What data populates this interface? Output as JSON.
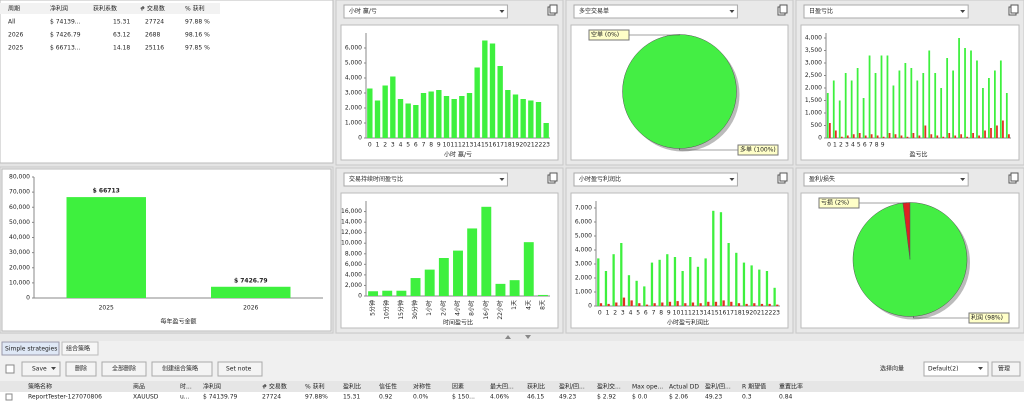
{
  "summary_table": {
    "columns": [
      "周期",
      "净利润",
      "获利系数",
      "# 交易数",
      "% 获利"
    ],
    "rows": [
      [
        "All",
        "$ 74139...",
        "15.31",
        "27724",
        "97.88 %"
      ],
      [
        "2026",
        "$ 7426.79",
        "63.12",
        "2688",
        "98.16 %"
      ],
      [
        "2025",
        "$ 66713...",
        "14.18",
        "25116",
        "97.85 %"
      ]
    ]
  },
  "chart_data": [
    {
      "type": "bar",
      "title": "小时 赢/亏",
      "xlabel": "小时 赢/亏",
      "color": "#3ef03e",
      "categories": [
        "0",
        "1",
        "2",
        "3",
        "4",
        "5",
        "6",
        "7",
        "8",
        "9",
        "10",
        "11",
        "12",
        "13",
        "14",
        "15",
        "16",
        "17",
        "18",
        "19",
        "20",
        "21",
        "22",
        "23"
      ],
      "values": [
        3300,
        2500,
        3500,
        4100,
        2600,
        2300,
        2200,
        3000,
        3100,
        3200,
        2800,
        2600,
        2800,
        3000,
        4700,
        6500,
        6300,
        4800,
        3200,
        2900,
        2600,
        2500,
        2400,
        1000
      ],
      "ylim": [
        0,
        7000
      ],
      "yticks": [
        0,
        {
          "value": 1000,
          "label": "1,000"
        },
        {
          "value": 2000,
          "label": "2,000"
        },
        {
          "value": 3000,
          "label": "3,000"
        },
        {
          "value": 4000,
          "label": "4,000"
        },
        {
          "value": 5000,
          "label": "5,000"
        },
        {
          "value": 6000,
          "label": "6,000"
        }
      ]
    },
    {
      "type": "pie",
      "title": "多空交易单",
      "values": [
        0,
        100
      ],
      "value_labels": [
        "空单 (0%)",
        "多单 (100%)"
      ],
      "colors": [
        "#e03020",
        "#44ee44"
      ]
    },
    {
      "type": "bar",
      "title": "日盈亏比",
      "xlabel": "盈亏比",
      "categories": [
        "0",
        "1",
        "2",
        "3",
        "4",
        "5",
        "6",
        "7",
        "8",
        "9",
        null,
        null,
        null,
        null,
        null,
        null,
        null,
        null,
        null,
        null,
        null,
        null,
        null,
        null,
        null,
        null,
        null,
        null,
        null,
        null,
        null
      ],
      "series": [
        {
          "color": "#3ef03e",
          "values": [
            1800,
            2300,
            1500,
            2600,
            2300,
            2800,
            1600,
            3300,
            2600,
            3300,
            3300,
            2100,
            2700,
            3000,
            2800,
            2300,
            2600,
            3500,
            2600,
            2000,
            3200,
            2700,
            4000,
            3600,
            3500,
            3100,
            2000,
            2400,
            2700,
            3100,
            1800
          ]
        },
        {
          "color": "#e03020",
          "values": [
            600,
            300,
            50,
            100,
            150,
            200,
            100,
            150,
            100,
            50,
            200,
            150,
            100,
            50,
            200,
            100,
            500,
            150,
            100,
            50,
            200,
            100,
            150,
            50,
            200,
            100,
            300,
            400,
            500,
            700,
            150
          ]
        }
      ],
      "ylim": [
        0,
        4200
      ],
      "yticks": [
        0,
        500,
        {
          "value": 1000,
          "label": "1,000"
        },
        {
          "value": 1500,
          "label": "1,500"
        },
        {
          "value": 2000,
          "label": "2,000"
        },
        {
          "value": 2500,
          "label": "2,500"
        },
        {
          "value": 3000,
          "label": "3,000"
        },
        {
          "value": 3500,
          "label": "3,500"
        },
        {
          "value": 4000,
          "label": "4,000"
        }
      ]
    },
    {
      "type": "bar",
      "title": "交易持续时间盈亏比",
      "xlabel": "时间盈亏比",
      "color": "#3ef03e",
      "categories": [
        "5分钟",
        "10分钟",
        "15分钟",
        "30分钟",
        "1小时",
        "2小时",
        "4小时",
        "8小时",
        "16小时",
        "22小时",
        "1天",
        "4天",
        "8天"
      ],
      "values": [
        900,
        1000,
        1000,
        3400,
        5000,
        7200,
        8600,
        12800,
        16900,
        2300,
        3000,
        10200,
        200
      ],
      "ylim": [
        0,
        18000
      ],
      "yticks": [
        0,
        {
          "value": 2000,
          "label": "2,000"
        },
        {
          "value": 4000,
          "label": "4,000"
        },
        {
          "value": 6000,
          "label": "6,000"
        },
        {
          "value": 8000,
          "label": "8,000"
        },
        {
          "value": 10000,
          "label": "10,000"
        },
        {
          "value": 12000,
          "label": "12,000"
        },
        {
          "value": 14000,
          "label": "14,000"
        },
        {
          "value": 16000,
          "label": "16,000"
        }
      ]
    },
    {
      "type": "bar",
      "title": "小时盈亏利润比",
      "xlabel": "小时盈亏利润比",
      "categories": [
        "0",
        "1",
        "2",
        "3",
        "4",
        "5",
        "6",
        "7",
        "8",
        "9",
        "10",
        "11",
        "12",
        "13",
        "14",
        "15",
        "16",
        "17",
        "18",
        "19",
        "20",
        "21",
        "22",
        "23"
      ],
      "series": [
        {
          "color": "#3ef03e",
          "values": [
            3400,
            2500,
            3700,
            4500,
            2200,
            1800,
            1400,
            3100,
            3300,
            3700,
            3500,
            2500,
            3500,
            2800,
            3400,
            6800,
            6700,
            4500,
            3800,
            3100,
            2900,
            2600,
            2500,
            1300
          ]
        },
        {
          "color": "#e03020",
          "values": [
            200,
            150,
            250,
            600,
            400,
            200,
            100,
            200,
            250,
            300,
            350,
            200,
            250,
            200,
            300,
            300,
            400,
            300,
            200,
            150,
            200,
            150,
            150,
            100
          ]
        }
      ],
      "ylim": [
        0,
        7500
      ],
      "yticks": [
        0,
        {
          "value": 1000,
          "label": "1,000"
        },
        {
          "value": 2000,
          "label": "2,000"
        },
        {
          "value": 3000,
          "label": "3,000"
        },
        {
          "value": 4000,
          "label": "4,000"
        },
        {
          "value": 5000,
          "label": "5,000"
        },
        {
          "value": 6000,
          "label": "6,000"
        },
        {
          "value": 7000,
          "label": "7,000"
        }
      ]
    },
    {
      "type": "pie",
      "title": "盈利/损失",
      "values": [
        2,
        98
      ],
      "value_labels": [
        "亏损 (2%)",
        "利润 (98%)"
      ],
      "colors": [
        "#dd2222",
        "#44ee44"
      ]
    },
    {
      "type": "bar",
      "xlabel": "每年盈亏金额",
      "color": "#3ef03e",
      "categories": [
        "2025",
        "2026"
      ],
      "values": [
        66713,
        7426.79
      ],
      "value_labels": [
        "$ 66713",
        "$ 7426.79"
      ],
      "ylim": [
        0,
        80000
      ],
      "yticks": [
        0,
        {
          "value": 10000,
          "label": "10,000"
        },
        {
          "value": 20000,
          "label": "20,000"
        },
        {
          "value": 30000,
          "label": "30,000"
        },
        {
          "value": 40000,
          "label": "40,000"
        },
        {
          "value": 50000,
          "label": "50,000"
        },
        {
          "value": 60000,
          "label": "60,000"
        },
        {
          "value": 70000,
          "label": "70,000"
        },
        {
          "value": 80000,
          "label": "80,000"
        }
      ]
    }
  ],
  "bottom_panel": {
    "tabs": [
      "Simple strategies",
      "组合策略"
    ],
    "buttons": [
      "Save",
      "删除",
      "全部删除",
      "创建组合策略",
      "Set note"
    ],
    "vector_label": "选择向量",
    "vector_value": "Default(2)",
    "manage": "管理",
    "table": {
      "columns": [
        "策略名称",
        "商品",
        "时...",
        "净利润",
        "# 交易数",
        "% 获利",
        "盈利比",
        "信任性",
        "对称性",
        "因素",
        "最大回...",
        "获利比",
        "盈利/回...",
        "盈利交...",
        "Max ope...",
        "Actual DD",
        "盈利/回...",
        "R 期望值",
        "重置比率"
      ],
      "rows": [
        [
          "ReportTester-127070806",
          "XAUUSD",
          "u...",
          "$ 74139.79",
          "27724",
          "97.88%",
          "15.31",
          "0.92",
          "0.0%",
          "$ 150...",
          "4.06%",
          "46.15",
          "49.23",
          "$ 2.92",
          "$ 0.0",
          "$ 2.06",
          "49.23",
          "0.3",
          "0.84"
        ]
      ]
    }
  }
}
